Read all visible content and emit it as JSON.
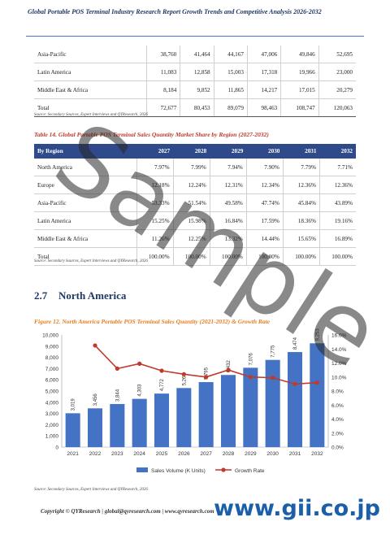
{
  "header": {
    "title": "Global Portable POS Terminal Industry Research Report Growth Trends and Competitive Analysis 2026-2032"
  },
  "table13": {
    "rows": [
      {
        "region": "Asia-Pacific",
        "values": [
          "38,760",
          "41,464",
          "44,167",
          "47,006",
          "49,846",
          "52,695"
        ]
      },
      {
        "region": "Latin America",
        "values": [
          "11,083",
          "12,858",
          "15,003",
          "17,318",
          "19,966",
          "23,000"
        ]
      },
      {
        "region": "Middle East & Africa",
        "values": [
          "8,184",
          "9,852",
          "11,865",
          "14,217",
          "17,015",
          "20,279"
        ]
      },
      {
        "region": "Total",
        "values": [
          "72,677",
          "80,453",
          "89,079",
          "98,463",
          "108,747",
          "120,063"
        ]
      }
    ],
    "source": "Source: Secondary Sources, Expert Interviews and QYResearch, 2026"
  },
  "table14": {
    "caption": "Table 14.  Global Portable POS Terminal Sales Quantity Market Share by Region (2027-2032)",
    "header": [
      "By Region",
      "2027",
      "2028",
      "2029",
      "2030",
      "2031",
      "2032"
    ],
    "rows": [
      {
        "region": "North America",
        "values": [
          "7.97%",
          "7.99%",
          "7.94%",
          "7.90%",
          "7.79%",
          "7.71%"
        ]
      },
      {
        "region": "Europe",
        "values": [
          "12.18%",
          "12.24%",
          "12.31%",
          "12.34%",
          "12.36%",
          "12.36%"
        ]
      },
      {
        "region": "Asia-Pacific",
        "values": [
          "53.33%",
          "51.54%",
          "49.58%",
          "47.74%",
          "45.84%",
          "43.89%"
        ]
      },
      {
        "region": "Latin America",
        "values": [
          "15.25%",
          "15.98%",
          "16.84%",
          "17.59%",
          "18.36%",
          "19.16%"
        ]
      },
      {
        "region": "Middle East & Africa",
        "values": [
          "11.26%",
          "12.25%",
          "13.32%",
          "14.44%",
          "15.65%",
          "16.89%"
        ]
      },
      {
        "region": "Total",
        "values": [
          "100.00%",
          "100.00%",
          "100.00%",
          "100.00%",
          "100.00%",
          "100.00%"
        ]
      }
    ],
    "source": "Source: Secondary Sources, Expert Interviews and QYResearch, 2026"
  },
  "section": {
    "number": "2.7",
    "title": "North America"
  },
  "figure": {
    "caption": "Figure 12.  North America Portable POS Terminal Sales Quantity (2021-2032) & Growth Rate",
    "source": "Source: Secondary Sources, Expert Interviews and QYResearch, 2026"
  },
  "chart_data": {
    "type": "bar",
    "categories": [
      "2021",
      "2022",
      "2023",
      "2024",
      "2025",
      "2026",
      "2027",
      "2028",
      "2029",
      "2030",
      "2031",
      "2032"
    ],
    "series": [
      {
        "name": "Sales Volume (K Units)",
        "kind": "bar",
        "color": "#4472c4",
        "values": [
          3019,
          3456,
          3844,
          4303,
          4772,
          5267,
          5795,
          6432,
          7076,
          7775,
          8474,
          9253
        ]
      },
      {
        "name": "Growth Rate",
        "kind": "line",
        "color": "#c0392b",
        "values": [
          null,
          14.5,
          11.2,
          11.9,
          10.9,
          10.4,
          10.0,
          11.0,
          10.0,
          9.9,
          9.0,
          9.2
        ]
      }
    ],
    "bar_labels": [
      "3,019",
      "3,456",
      "3,844",
      "4,303",
      "4,772",
      "5,267",
      "5,795",
      "6,432",
      "7,076",
      "7,775",
      "8,474",
      "9,253"
    ],
    "ylim": [
      0,
      10000
    ],
    "y_ticks": [
      "0",
      "1,000",
      "2,000",
      "3,000",
      "4,000",
      "5,000",
      "6,000",
      "7,000",
      "8,000",
      "9,000",
      "10,000"
    ],
    "y2lim": [
      0,
      16
    ],
    "y2_ticks": [
      "0.0%",
      "2.0%",
      "4.0%",
      "6.0%",
      "8.0%",
      "10.0%",
      "12.0%",
      "14.0%",
      "16.0%"
    ],
    "legend": "bottom",
    "grid": false
  },
  "footer": {
    "text": "Copyright © QYResearch | global@qyresearch.com | www.qyresearch.com"
  },
  "watermark": {
    "text": "Sample"
  },
  "brand": {
    "text": "www.gii.co.jp"
  },
  "colors": {
    "header_fill": "#2e4a8a",
    "title": "#1f3864",
    "caption_red": "#c0392b",
    "caption_orange": "#e67e22",
    "bar": "#4472c4",
    "line": "#c0392b"
  }
}
